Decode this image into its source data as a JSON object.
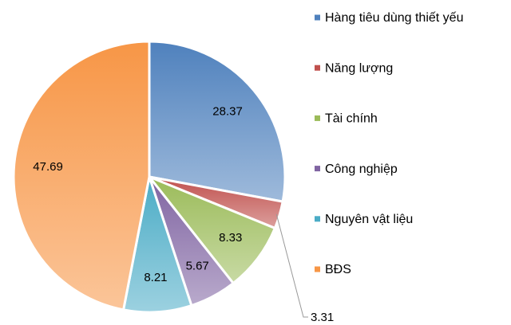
{
  "chart_data": {
    "type": "pie",
    "categories": [
      "Hàng tiêu dùng thiết yếu",
      "Năng lượng",
      "Tài chính",
      "Công nghiệp",
      "Nguyên vật liệu",
      "BĐS"
    ],
    "values": [
      28.37,
      3.31,
      8.33,
      5.67,
      8.21,
      47.69
    ],
    "colors": [
      "#4f81bd",
      "#c0504d",
      "#9bbb59",
      "#8064a2",
      "#4bacc6",
      "#f79646"
    ],
    "legend": "right"
  }
}
